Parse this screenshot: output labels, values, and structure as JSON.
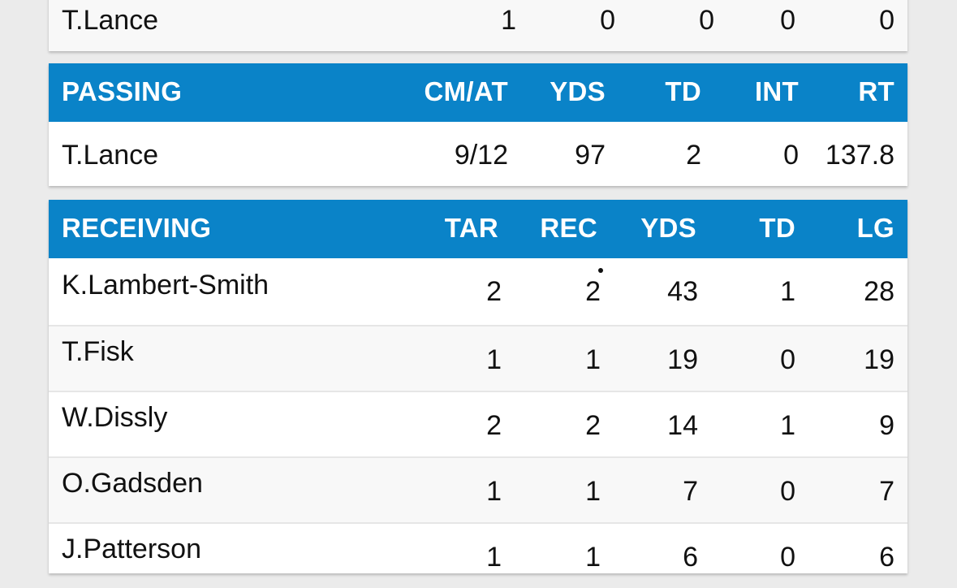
{
  "top_row": {
    "name": "T.Lance",
    "values": [
      "1",
      "0",
      "0",
      "0",
      "0"
    ]
  },
  "passing": {
    "title": "PASSING",
    "columns": [
      "CM/AT",
      "YDS",
      "TD",
      "INT",
      "RT"
    ],
    "rows": [
      {
        "name": "T.Lance",
        "values": [
          "9/12",
          "97",
          "2",
          "0",
          "137.8"
        ]
      }
    ]
  },
  "receiving": {
    "title": "RECEIVING",
    "columns": [
      "TAR",
      "REC",
      "YDS",
      "TD",
      "LG"
    ],
    "rows": [
      {
        "name": "K.Lambert-Smith",
        "values": [
          "2",
          "2",
          "43",
          "1",
          "28"
        ]
      },
      {
        "name": "T.Fisk",
        "values": [
          "1",
          "1",
          "19",
          "0",
          "19"
        ]
      },
      {
        "name": "W.Dissly",
        "values": [
          "2",
          "2",
          "14",
          "1",
          "9"
        ]
      },
      {
        "name": "O.Gadsden",
        "values": [
          "1",
          "1",
          "7",
          "0",
          "7"
        ]
      },
      {
        "name": "J.Patterson",
        "values": [
          "1",
          "1",
          "6",
          "0",
          "6"
        ]
      }
    ]
  },
  "colors": {
    "header_bg": "#0a83c8",
    "header_text": "#ffffff",
    "alt_row_bg": "#f8f8f8"
  }
}
